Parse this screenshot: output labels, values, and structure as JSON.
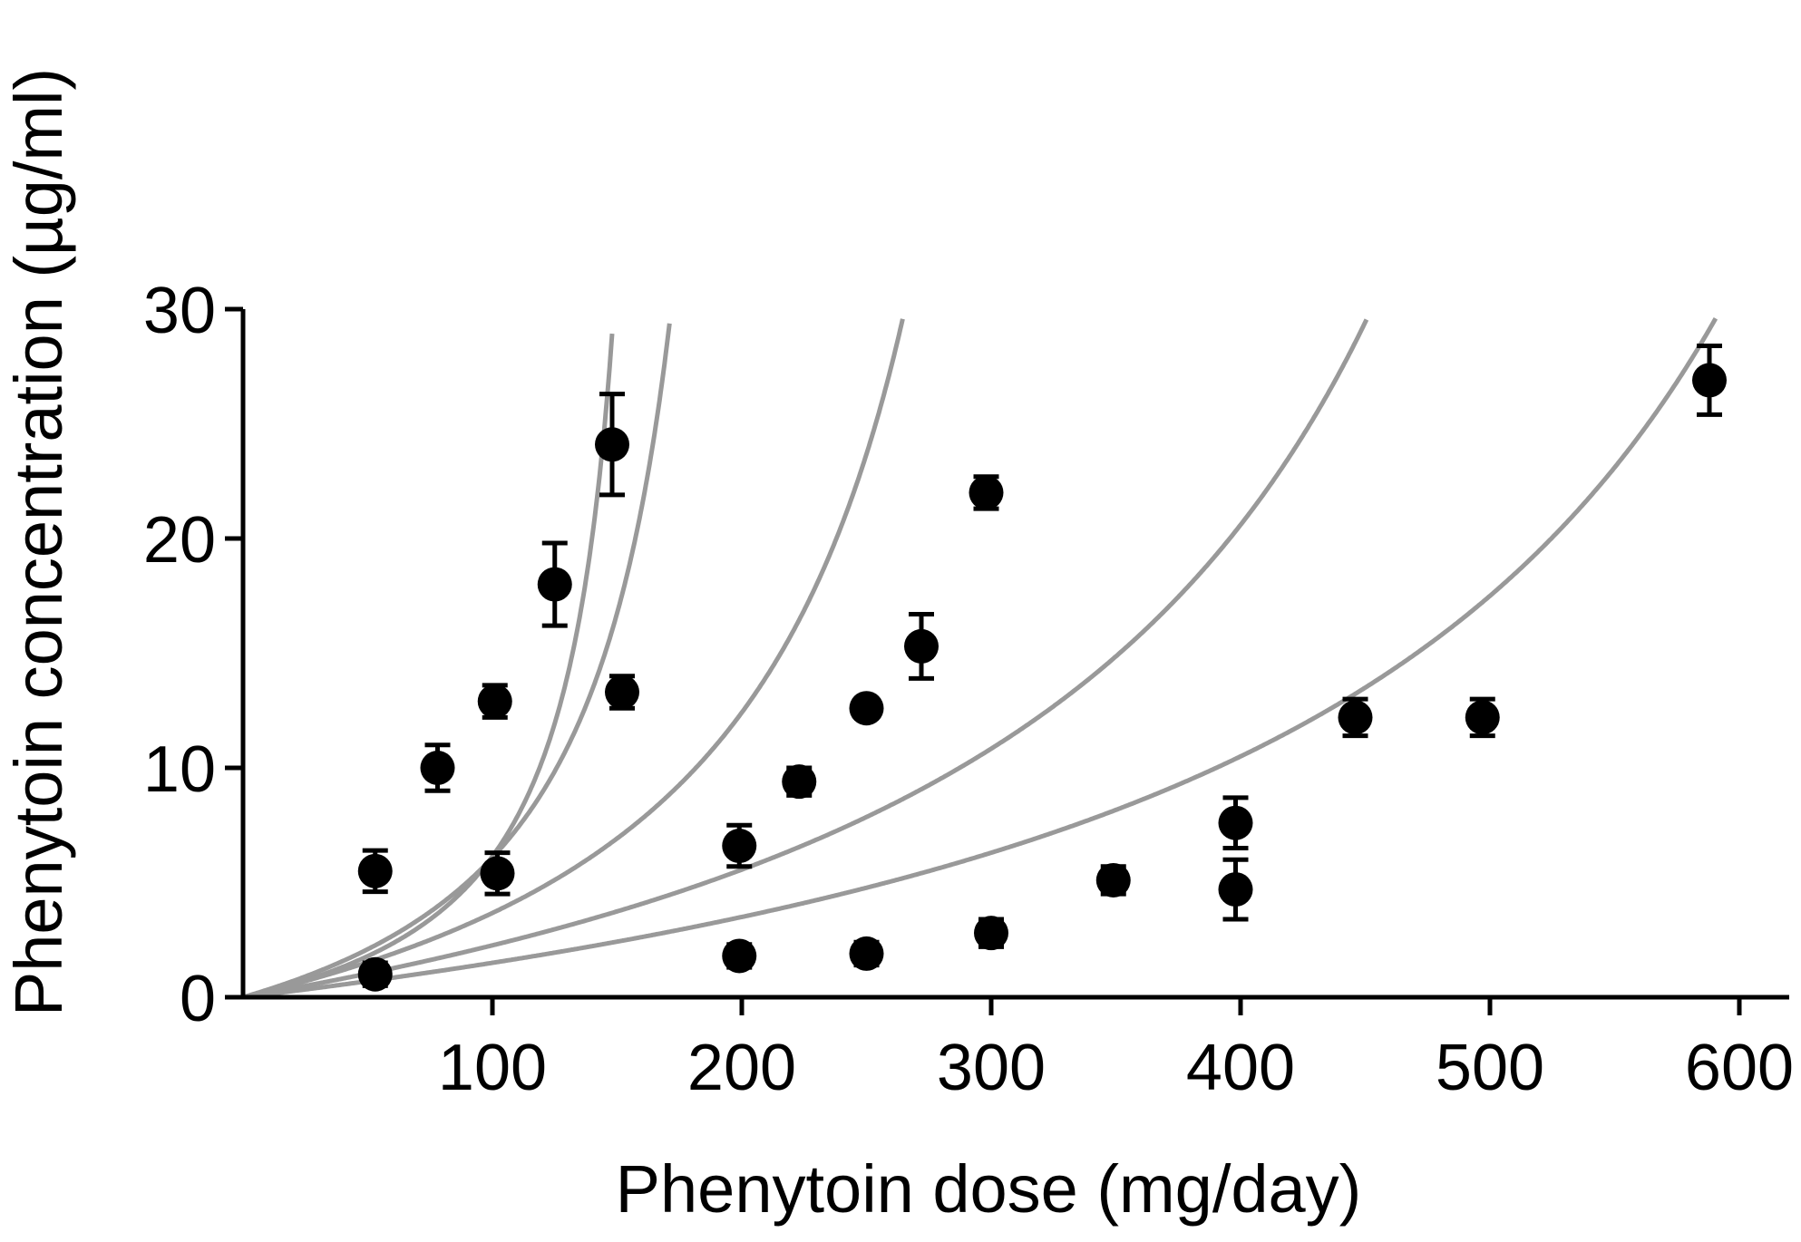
{
  "chart_data": {
    "type": "scatter",
    "title": "",
    "xlabel": "Phenytoin dose (mg/day)",
    "ylabel": "Phenytoin concentration (µg/ml)",
    "xlim": [
      0,
      620
    ],
    "ylim": [
      0,
      30
    ],
    "x_ticks": [
      100,
      200,
      300,
      400,
      500,
      600
    ],
    "x_tick_labels": [
      "100",
      "200",
      "300",
      "400",
      "500",
      "600"
    ],
    "y_ticks": [
      0,
      10,
      20,
      30
    ],
    "y_tick_labels": [
      "0",
      "10",
      "20",
      "30"
    ],
    "grid": false,
    "legend": "none",
    "colors": {
      "points": "#000000",
      "curves": "#999999",
      "axes": "#000000"
    },
    "series": [
      {
        "points": [
          {
            "x": 53,
            "y": 5.5,
            "err": 0.9
          },
          {
            "x": 78,
            "y": 10.0,
            "err": 1.0
          },
          {
            "x": 101,
            "y": 12.9,
            "err": 0.7
          },
          {
            "x": 125,
            "y": 18.0,
            "err": 1.8
          },
          {
            "x": 148,
            "y": 24.1,
            "err": 2.2
          }
        ],
        "fit": {
          "vmax": 170,
          "km": 4.3
        }
      },
      {
        "points": [
          {
            "x": 53,
            "y": 1.0,
            "err": 0.5
          },
          {
            "x": 102,
            "y": 5.4,
            "err": 0.9
          },
          {
            "x": 152,
            "y": 13.3,
            "err": 0.7
          }
        ],
        "fit": {
          "vmax": 210,
          "km": 6.7
        }
      },
      {
        "points": [
          {
            "x": 199,
            "y": 6.6,
            "err": 0.9
          },
          {
            "x": 223,
            "y": 9.4,
            "err": 0.6
          },
          {
            "x": 250,
            "y": 12.6,
            "err": 0
          },
          {
            "x": 272,
            "y": 15.3,
            "err": 1.4
          },
          {
            "x": 298,
            "y": 22.0,
            "err": 0.7
          }
        ],
        "fit": {
          "vmax": 345,
          "km": 9.0
        }
      },
      {
        "points": [
          {
            "x": 199,
            "y": 1.8,
            "err": 0.5
          },
          {
            "x": 250,
            "y": 1.9,
            "err": 0.5
          },
          {
            "x": 300,
            "y": 2.8,
            "err": 0.6
          },
          {
            "x": 349,
            "y": 5.1,
            "err": 0.6
          },
          {
            "x": 398,
            "y": 7.6,
            "err": 1.1
          },
          {
            "x": 446,
            "y": 12.2,
            "err": 0.8
          }
        ],
        "fit": {
          "vmax": 635,
          "km": 12.1
        }
      },
      {
        "points": [
          {
            "x": 398,
            "y": 4.7,
            "err": 1.3
          },
          {
            "x": 497,
            "y": 12.2,
            "err": 0.8
          },
          {
            "x": 588,
            "y": 26.9,
            "err": 1.5
          }
        ],
        "fit": {
          "vmax": 800,
          "km": 10.5
        }
      }
    ]
  }
}
